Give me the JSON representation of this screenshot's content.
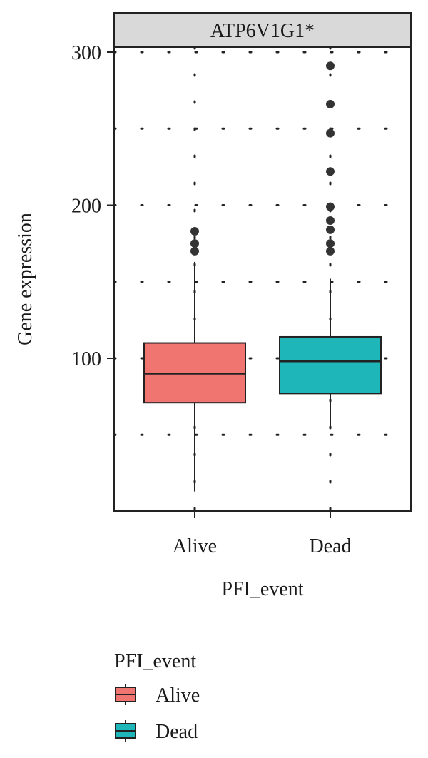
{
  "chart_data": {
    "type": "box",
    "facet_title": "ATP6V1G1*",
    "xlabel": "PFI_event",
    "ylabel": "Gene expression",
    "categories": [
      "Alive",
      "Dead"
    ],
    "ylim": [
      0,
      300
    ],
    "y_ticks": [
      100,
      200,
      300
    ],
    "grid": "dotted",
    "boxes": [
      {
        "group": "Alive",
        "q1": 71,
        "median": 90,
        "q3": 110,
        "whisker_low": 13,
        "whisker_high": 163,
        "outliers": [
          170,
          175,
          183
        ]
      },
      {
        "group": "Dead",
        "q1": 77,
        "median": 98,
        "q3": 114,
        "whisker_low": 55,
        "whisker_high": 152,
        "outliers": [
          170,
          175,
          184,
          190,
          199,
          222,
          247,
          266,
          291
        ]
      }
    ],
    "legend": {
      "title": "PFI_event",
      "position": "bottom-left",
      "items": [
        {
          "label": "Alive",
          "color": "#f07570"
        },
        {
          "label": "Dead",
          "color": "#1fb6b9"
        }
      ]
    }
  }
}
